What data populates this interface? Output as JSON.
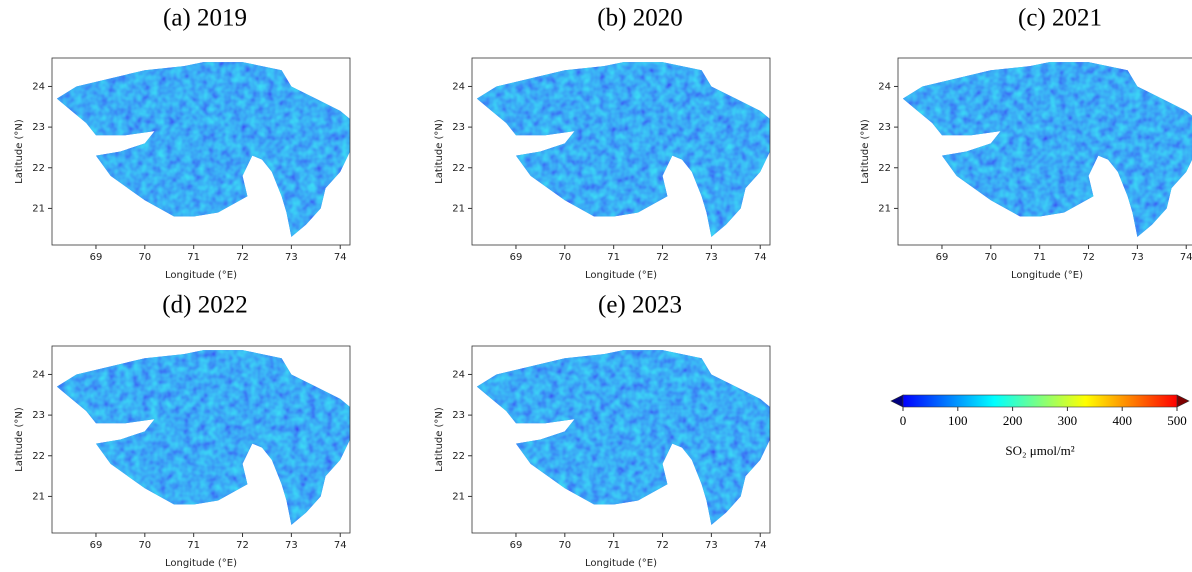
{
  "chart_data": [
    {
      "type": "map",
      "title": "(a) 2019",
      "xlabel": "Longitude (°E)",
      "ylabel": "Latitude (°N)",
      "xlim": [
        68.1,
        74.2
      ],
      "ylim": [
        20.1,
        24.7
      ],
      "xticks": [
        69,
        70,
        71,
        72,
        73,
        74
      ],
      "yticks": [
        21,
        22,
        23,
        24
      ]
    },
    {
      "type": "map",
      "title": "(b) 2020",
      "xlabel": "Longitude (°E)",
      "ylabel": "Latitude (°N)",
      "xlim": [
        68.1,
        74.2
      ],
      "ylim": [
        20.1,
        24.7
      ],
      "xticks": [
        69,
        70,
        71,
        72,
        73,
        74
      ],
      "yticks": [
        21,
        22,
        23,
        24
      ]
    },
    {
      "type": "map",
      "title": "(c) 2021",
      "xlabel": "Longitude (°E)",
      "ylabel": "Latitude (°N)",
      "xlim": [
        68.1,
        74.2
      ],
      "ylim": [
        20.1,
        24.7
      ],
      "xticks": [
        69,
        70,
        71,
        72,
        73,
        74
      ],
      "yticks": [
        21,
        22,
        23,
        24
      ]
    },
    {
      "type": "map",
      "title": "(d) 2022",
      "xlabel": "Longitude (°E)",
      "ylabel": "Latitude (°N)",
      "xlim": [
        68.1,
        74.2
      ],
      "ylim": [
        20.1,
        24.7
      ],
      "xticks": [
        69,
        70,
        71,
        72,
        73,
        74
      ],
      "yticks": [
        21,
        22,
        23,
        24
      ]
    },
    {
      "type": "map",
      "title": "(e) 2023",
      "xlabel": "Longitude (°E)",
      "ylabel": "Latitude (°N)",
      "xlim": [
        68.1,
        74.2
      ],
      "ylim": [
        20.1,
        24.7
      ],
      "xticks": [
        69,
        70,
        71,
        72,
        73,
        74
      ],
      "yticks": [
        21,
        22,
        23,
        24
      ]
    },
    {
      "type": "colorbar",
      "label": "SO₂ μmol/m²",
      "xlim": [
        0,
        500
      ],
      "xticks": [
        0,
        100,
        200,
        300,
        400,
        500
      ],
      "colors": [
        "#00007f",
        "#0000ff",
        "#007fff",
        "#00ffff",
        "#7fff7f",
        "#ffff00",
        "#ff7f00",
        "#ff0000",
        "#7f0000"
      ]
    }
  ]
}
